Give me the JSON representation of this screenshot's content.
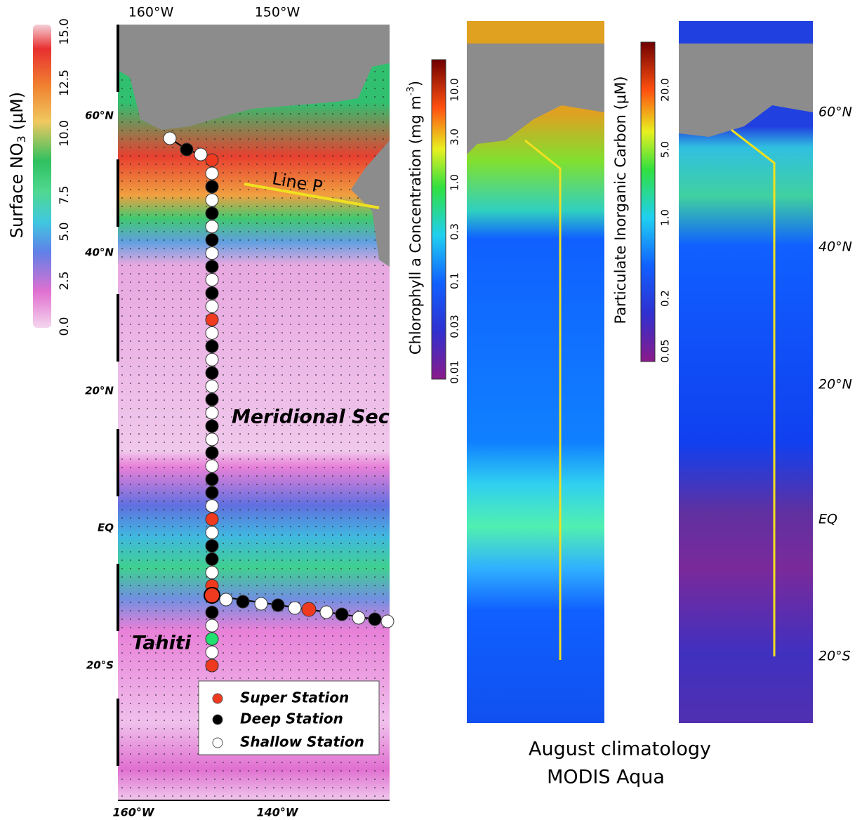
{
  "no3_map": {
    "colorbar": {
      "label": {
        "main": "Surface NO",
        "sub": "3",
        "unit": " (μM)"
      },
      "ticks": [
        "15.0",
        "12.5",
        "10.0",
        "7.5",
        "5.0",
        "2.5",
        "0.0"
      ]
    },
    "lon_top": [
      "160°W",
      "150°W"
    ],
    "lon_bottom": [
      "160°W",
      "140°W"
    ],
    "lat_labels": [
      "60°N",
      "40°N",
      "20°N",
      "EQ",
      "20°S"
    ],
    "annotations": {
      "line_p": "Line P",
      "section": "Meridional Sec",
      "island": "Tahiti"
    },
    "legend": [
      "Super Station",
      "Deep Station",
      "Shallow Station"
    ]
  },
  "chlorophyll_map": {
    "colorbar": {
      "label": {
        "main": "Chlorophyll a Concentration (mg m",
        "sup": "-3",
        "end": ")"
      },
      "ticks": [
        "10.0",
        "3.0",
        "1.0",
        "0.3",
        "0.1",
        "0.03",
        "0.01"
      ]
    }
  },
  "pic_map": {
    "colorbar": {
      "label": {
        "main": "Particulate Inorganic Carbon (μM)"
      },
      "ticks": [
        "20.0",
        "5.0",
        "1.0",
        "0.2",
        "0.05"
      ]
    }
  },
  "right_lat_labels": [
    "60°N",
    "40°N",
    "20°N",
    "EQ",
    "20°S"
  ],
  "caption": [
    "August climatology",
    "MODIS Aqua"
  ]
}
